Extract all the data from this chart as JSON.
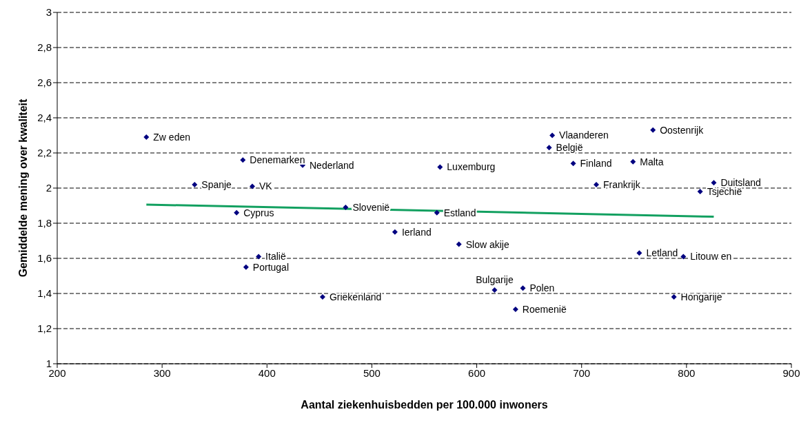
{
  "chart_data": {
    "type": "scatter",
    "xlabel": "Aantal ziekenhuisbedden per 100.000 inwoners",
    "ylabel": "Gemiddelde mening over kwaliteit",
    "xlim": [
      200,
      900
    ],
    "xticks": [
      200,
      300,
      400,
      500,
      600,
      700,
      800,
      900
    ],
    "ylim": [
      1,
      3
    ],
    "yticks": [
      1,
      {
        "value": 1.2,
        "label": "1,2"
      },
      {
        "value": 1.4,
        "label": "1,4"
      },
      {
        "value": 1.6,
        "label": "1,6"
      },
      {
        "value": 1.8,
        "label": "1,8"
      },
      2,
      {
        "value": 2.2,
        "label": "2,2"
      },
      {
        "value": 2.4,
        "label": "2,4"
      },
      {
        "value": 2.6,
        "label": "2,6"
      },
      {
        "value": 2.8,
        "label": "2,8"
      },
      3
    ],
    "grid": "y",
    "legend": false,
    "series": [
      {
        "marker": "diamond",
        "color": "#000080",
        "x": [
          285,
          377,
          331,
          386,
          434,
          371,
          392,
          380,
          475,
          453,
          522,
          565,
          562,
          617,
          644,
          637,
          583,
          672,
          669,
          692,
          714,
          749,
          768,
          826,
          813,
          755,
          797,
          788
        ],
        "values": [
          2.29,
          2.16,
          2.02,
          2.01,
          2.13,
          1.86,
          1.61,
          1.55,
          1.89,
          1.38,
          1.75,
          2.12,
          1.86,
          1.42,
          1.43,
          1.31,
          1.68,
          2.3,
          2.23,
          2.14,
          2.02,
          2.15,
          2.33,
          2.03,
          1.98,
          1.63,
          1.61,
          1.38
        ]
      },
      {
        "type": "line",
        "color": "#12a060",
        "line_style": "solid",
        "x": [
          285,
          826
        ],
        "values": [
          1.906,
          1.837
        ]
      }
    ],
    "annotations": [
      {
        "text": "Zw eden",
        "x": 285,
        "y": 2.29
      },
      {
        "text": "Denemarken",
        "x": 377,
        "y": 2.16
      },
      {
        "text": "Spanje",
        "x": 331,
        "y": 2.02
      },
      {
        "text": "VK",
        "x": 386,
        "y": 2.01
      },
      {
        "text": "Nederland",
        "x": 434,
        "y": 2.13
      },
      {
        "text": "Cyprus",
        "x": 371,
        "y": 1.86
      },
      {
        "text": "Italië",
        "x": 392,
        "y": 1.61
      },
      {
        "text": "Portugal",
        "x": 380,
        "y": 1.55
      },
      {
        "text": "Slovenië",
        "x": 475,
        "y": 1.89
      },
      {
        "text": "Griekenland",
        "x": 453,
        "y": 1.38
      },
      {
        "text": "Ierland",
        "x": 522,
        "y": 1.75
      },
      {
        "text": "Luxemburg",
        "x": 565,
        "y": 2.12
      },
      {
        "text": "Estland",
        "x": 562,
        "y": 1.86
      },
      {
        "text": "Bulgarije",
        "x": 617,
        "y": 1.42
      },
      {
        "text": "Polen",
        "x": 644,
        "y": 1.43
      },
      {
        "text": "Roemenië",
        "x": 637,
        "y": 1.31
      },
      {
        "text": "Slow akije",
        "x": 583,
        "y": 1.68
      },
      {
        "text": "Vlaanderen",
        "x": 672,
        "y": 2.3
      },
      {
        "text": "België",
        "x": 669,
        "y": 2.23
      },
      {
        "text": "Finland",
        "x": 692,
        "y": 2.14
      },
      {
        "text": "Frankrijk",
        "x": 714,
        "y": 2.02
      },
      {
        "text": "Malta",
        "x": 749,
        "y": 2.15
      },
      {
        "text": "Oostenrijk",
        "x": 768,
        "y": 2.33
      },
      {
        "text": "Duitsland",
        "x": 826,
        "y": 2.03
      },
      {
        "text": "Tsjechië",
        "x": 813,
        "y": 1.98
      },
      {
        "text": "Letland",
        "x": 755,
        "y": 1.63
      },
      {
        "text": "Litouw en",
        "x": 797,
        "y": 1.61
      },
      {
        "text": "Hongarije",
        "x": 788,
        "y": 1.38
      }
    ]
  }
}
